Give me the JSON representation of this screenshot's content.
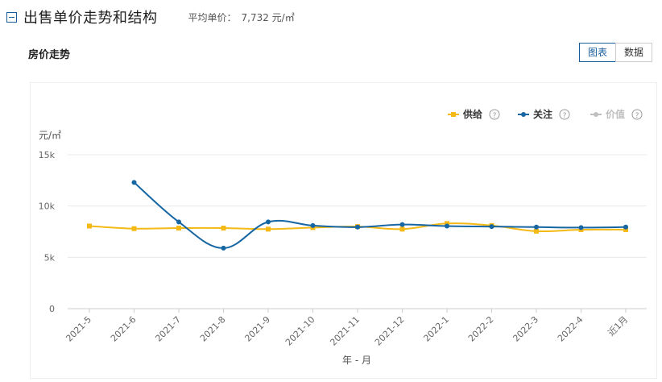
{
  "header": {
    "title": "出售单价走势和结构",
    "avg_price_label": "平均单价：",
    "avg_price_value": "7,732 元/㎡"
  },
  "section": {
    "title": "房价走势",
    "toggle": {
      "chart_label": "图表",
      "data_label": "数据",
      "active": "chart"
    }
  },
  "legend": [
    {
      "name": "供给",
      "color": "#f5b916",
      "marker": "square",
      "active": true
    },
    {
      "name": "关注",
      "color": "#1666a3",
      "marker": "circle",
      "active": true
    },
    {
      "name": "价值",
      "color": "#bfbfbf",
      "marker": "circle",
      "active": false
    }
  ],
  "icons": {
    "help": "question-circle-icon",
    "collapse": "minus-square-icon"
  },
  "chart_data": {
    "type": "line",
    "ylabel": "元/㎡",
    "xlabel": "年 - 月",
    "ylim": [
      0,
      15000
    ],
    "y_ticks": [
      {
        "value": 0,
        "label": "0"
      },
      {
        "value": 5000,
        "label": "5k"
      },
      {
        "value": 10000,
        "label": "10k"
      },
      {
        "value": 15000,
        "label": "15k"
      }
    ],
    "categories": [
      "2021-5",
      "2021-6",
      "2021-7",
      "2021-8",
      "2021-9",
      "2021-10",
      "2021-11",
      "2021-12",
      "2022-1",
      "2022-2",
      "2022-3",
      "2022-4",
      "近1月"
    ],
    "grid": true,
    "series": [
      {
        "name": "供给",
        "color": "#f5b916",
        "marker": "square",
        "values": [
          8050,
          7800,
          7850,
          7850,
          7750,
          7900,
          8000,
          7750,
          8300,
          8100,
          7550,
          7700,
          7700
        ]
      },
      {
        "name": "关注",
        "color": "#1666a3",
        "marker": "circle",
        "values": [
          null,
          12300,
          8450,
          5900,
          8450,
          8100,
          7950,
          8200,
          8050,
          8000,
          7950,
          7900,
          7950
        ]
      }
    ]
  }
}
